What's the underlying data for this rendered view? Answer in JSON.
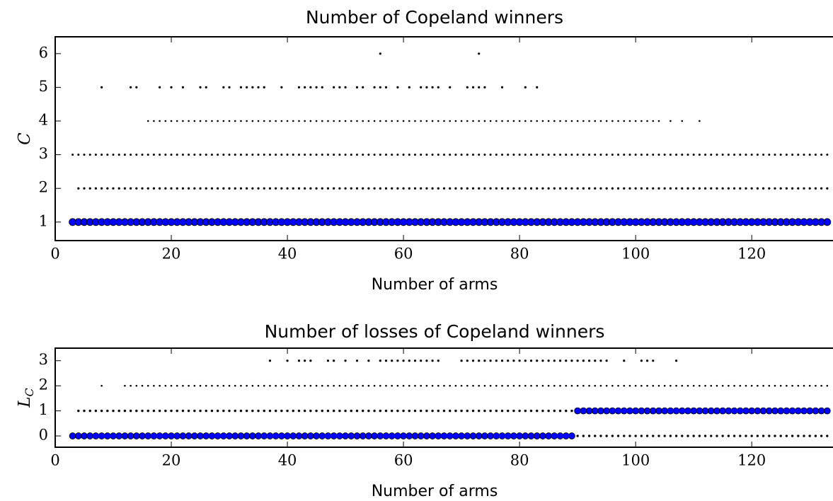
{
  "chart_data": [
    {
      "type": "scatter",
      "title": "Number of Copeland winners",
      "xlabel": "Number of arms",
      "ylabel": "C",
      "xlim": [
        0,
        134
      ],
      "ylim": [
        0.45,
        6.5
      ],
      "xticks": [
        0,
        20,
        40,
        60,
        80,
        100,
        120
      ],
      "yticks": [
        1,
        2,
        3,
        4,
        5,
        6
      ],
      "series": [
        {
          "color": "#000000",
          "size": 1.6,
          "y": 6,
          "x": [
            56,
            73
          ]
        },
        {
          "color": "#000000",
          "size": 1.6,
          "y": 5,
          "x": [
            8,
            13,
            14,
            18,
            20,
            22,
            25,
            26,
            29,
            30,
            32,
            33,
            34,
            35,
            36,
            39,
            42,
            43,
            44,
            45,
            46,
            48,
            49,
            50,
            52,
            53,
            55,
            56,
            57,
            59,
            61,
            63,
            64,
            65,
            66,
            68,
            71,
            72,
            73,
            74,
            77,
            81,
            83
          ]
        },
        {
          "color": "#000000",
          "size": 1.3,
          "y": 4,
          "x": [
            16,
            17,
            18,
            19,
            20,
            21,
            22,
            23,
            24,
            25,
            26,
            27,
            28,
            29,
            30,
            31,
            32,
            33,
            34,
            35,
            36,
            37,
            38,
            39,
            40,
            41,
            42,
            43,
            44,
            45,
            46,
            47,
            48,
            49,
            50,
            51,
            52,
            53,
            54,
            55,
            56,
            57,
            58,
            59,
            60,
            61,
            62,
            63,
            64,
            65,
            66,
            67,
            68,
            69,
            70,
            71,
            72,
            73,
            74,
            75,
            76,
            77,
            78,
            79,
            80,
            81,
            82,
            83,
            84,
            85,
            86,
            87,
            88,
            89,
            90,
            91,
            92,
            93,
            94,
            95,
            96,
            97,
            98,
            99,
            100,
            101,
            102,
            103,
            104,
            106,
            108,
            111
          ]
        },
        {
          "color": "#000000",
          "size": 1.5,
          "y": 3,
          "x": [
            3,
            4,
            5,
            6,
            7,
            8,
            9,
            10,
            11,
            12,
            13,
            14,
            15,
            16,
            17,
            18,
            19,
            20,
            21,
            22,
            23,
            24,
            25,
            26,
            27,
            28,
            29,
            30,
            31,
            32,
            33,
            34,
            35,
            36,
            37,
            38,
            39,
            40,
            41,
            42,
            43,
            44,
            45,
            46,
            47,
            48,
            49,
            50,
            51,
            52,
            53,
            54,
            55,
            56,
            57,
            58,
            59,
            60,
            61,
            62,
            63,
            64,
            65,
            66,
            67,
            68,
            69,
            70,
            71,
            72,
            73,
            74,
            75,
            76,
            77,
            78,
            79,
            80,
            81,
            82,
            83,
            84,
            85,
            86,
            87,
            88,
            89,
            90,
            91,
            92,
            93,
            94,
            95,
            96,
            97,
            98,
            99,
            100,
            101,
            102,
            103,
            104,
            105,
            106,
            107,
            108,
            109,
            110,
            111,
            112,
            113,
            114,
            115,
            116,
            117,
            118,
            119,
            120,
            121,
            122,
            123,
            124,
            125,
            126,
            127,
            128,
            129,
            130,
            131,
            132,
            133
          ]
        },
        {
          "color": "#000000",
          "size": 1.6,
          "y": 2,
          "x": [
            4,
            5,
            6,
            7,
            8,
            9,
            10,
            11,
            12,
            13,
            14,
            15,
            16,
            17,
            18,
            19,
            20,
            21,
            22,
            23,
            24,
            25,
            26,
            27,
            28,
            29,
            30,
            31,
            32,
            33,
            34,
            35,
            36,
            37,
            38,
            39,
            40,
            41,
            42,
            43,
            44,
            45,
            46,
            47,
            48,
            49,
            50,
            51,
            52,
            53,
            54,
            55,
            56,
            57,
            58,
            59,
            60,
            61,
            62,
            63,
            64,
            65,
            66,
            67,
            68,
            69,
            70,
            71,
            72,
            73,
            74,
            75,
            76,
            77,
            78,
            79,
            80,
            81,
            82,
            83,
            84,
            85,
            86,
            87,
            88,
            89,
            90,
            91,
            92,
            93,
            94,
            95,
            96,
            97,
            98,
            99,
            100,
            101,
            102,
            103,
            104,
            105,
            106,
            107,
            108,
            109,
            110,
            111,
            112,
            113,
            114,
            115,
            116,
            117,
            118,
            119,
            120,
            121,
            122,
            123,
            124,
            125,
            126,
            127,
            128,
            129,
            130,
            131,
            132,
            133
          ]
        },
        {
          "color": "#0000ff",
          "size": 5,
          "y": 1,
          "x": [
            3,
            4,
            5,
            6,
            7,
            8,
            9,
            10,
            11,
            12,
            13,
            14,
            15,
            16,
            17,
            18,
            19,
            20,
            21,
            22,
            23,
            24,
            25,
            26,
            27,
            28,
            29,
            30,
            31,
            32,
            33,
            34,
            35,
            36,
            37,
            38,
            39,
            40,
            41,
            42,
            43,
            44,
            45,
            46,
            47,
            48,
            49,
            50,
            51,
            52,
            53,
            54,
            55,
            56,
            57,
            58,
            59,
            60,
            61,
            62,
            63,
            64,
            65,
            66,
            67,
            68,
            69,
            70,
            71,
            72,
            73,
            74,
            75,
            76,
            77,
            78,
            79,
            80,
            81,
            82,
            83,
            84,
            85,
            86,
            87,
            88,
            89,
            90,
            91,
            92,
            93,
            94,
            95,
            96,
            97,
            98,
            99,
            100,
            101,
            102,
            103,
            104,
            105,
            106,
            107,
            108,
            109,
            110,
            111,
            112,
            113,
            114,
            115,
            116,
            117,
            118,
            119,
            120,
            121,
            122,
            123,
            124,
            125,
            126,
            127,
            128,
            129,
            130,
            131,
            132,
            133
          ]
        }
      ]
    },
    {
      "type": "scatter",
      "title": "Number of losses of Copeland winners",
      "xlabel": "Number of arms",
      "ylabel": "L",
      "ylabel_subscript": "C",
      "xlim": [
        0,
        134
      ],
      "ylim": [
        -0.45,
        3.5
      ],
      "xticks": [
        0,
        20,
        40,
        60,
        80,
        100,
        120
      ],
      "yticks": [
        0,
        1,
        2,
        3
      ],
      "series": [
        {
          "color": "#000000",
          "size": 1.6,
          "y": 3,
          "x": [
            37,
            40,
            42,
            43,
            44,
            47,
            48,
            50,
            52,
            54,
            56,
            57,
            58,
            59,
            60,
            61,
            62,
            63,
            64,
            65,
            66,
            70,
            71,
            72,
            73,
            74,
            75,
            76,
            77,
            78,
            79,
            80,
            81,
            82,
            83,
            84,
            85,
            86,
            87,
            88,
            89,
            90,
            91,
            92,
            93,
            94,
            95,
            98,
            101,
            102,
            103,
            107
          ]
        },
        {
          "color": "#000000",
          "size": 1.3,
          "y": 2,
          "x": [
            8,
            12,
            13,
            14,
            15,
            16,
            17,
            18,
            19,
            20,
            21,
            22,
            23,
            24,
            25,
            26,
            27,
            28,
            29,
            30,
            31,
            32,
            33,
            34,
            35,
            36,
            37,
            38,
            39,
            40,
            41,
            42,
            43,
            44,
            45,
            46,
            47,
            48,
            49,
            50,
            51,
            52,
            53,
            54,
            55,
            56,
            57,
            58,
            59,
            60,
            61,
            62,
            63,
            64,
            65,
            66,
            67,
            68,
            69,
            70,
            71,
            72,
            73,
            74,
            75,
            76,
            77,
            78,
            79,
            80,
            81,
            82,
            83,
            84,
            85,
            86,
            87,
            88,
            89,
            90,
            91,
            92,
            93,
            94,
            95,
            96,
            97,
            98,
            99,
            100,
            101,
            102,
            103,
            104,
            105,
            106,
            107,
            108,
            109,
            110,
            111,
            112,
            113,
            114,
            115,
            116,
            117,
            118,
            119,
            120,
            121,
            122,
            123,
            124,
            125,
            126,
            127,
            128,
            129,
            130,
            131,
            132,
            133
          ]
        },
        {
          "color": "#000000",
          "size": 1.7,
          "y": 1,
          "x": [
            4,
            5,
            6,
            7,
            8,
            9,
            10,
            11,
            12,
            13,
            14,
            15,
            16,
            17,
            18,
            19,
            20,
            21,
            22,
            23,
            24,
            25,
            26,
            27,
            28,
            29,
            30,
            31,
            32,
            33,
            34,
            35,
            36,
            37,
            38,
            39,
            40,
            41,
            42,
            43,
            44,
            45,
            46,
            47,
            48,
            49,
            50,
            51,
            52,
            53,
            54,
            55,
            56,
            57,
            58,
            59,
            60,
            61,
            62,
            63,
            64,
            65,
            66,
            67,
            68,
            69,
            70,
            71,
            72,
            73,
            74,
            75,
            76,
            77,
            78,
            79,
            80,
            81,
            82,
            83,
            84,
            85,
            86,
            87,
            88,
            89
          ]
        },
        {
          "color": "#0000ff",
          "size": 4.5,
          "y": 1,
          "x": [
            90,
            91,
            92,
            93,
            94,
            95,
            96,
            97,
            98,
            99,
            100,
            101,
            102,
            103,
            104,
            105,
            106,
            107,
            108,
            109,
            110,
            111,
            112,
            113,
            114,
            115,
            116,
            117,
            118,
            119,
            120,
            121,
            122,
            123,
            124,
            125,
            126,
            127,
            128,
            129,
            130,
            131,
            132,
            133
          ]
        },
        {
          "color": "#0000ff",
          "size": 4.5,
          "y": 0,
          "x": [
            3,
            4,
            5,
            6,
            7,
            8,
            9,
            10,
            11,
            12,
            13,
            14,
            15,
            16,
            17,
            18,
            19,
            20,
            21,
            22,
            23,
            24,
            25,
            26,
            27,
            28,
            29,
            30,
            31,
            32,
            33,
            34,
            35,
            36,
            37,
            38,
            39,
            40,
            41,
            42,
            43,
            44,
            45,
            46,
            47,
            48,
            49,
            50,
            51,
            52,
            53,
            54,
            55,
            56,
            57,
            58,
            59,
            60,
            61,
            62,
            63,
            64,
            65,
            66,
            67,
            68,
            69,
            70,
            71,
            72,
            73,
            74,
            75,
            76,
            77,
            78,
            79,
            80,
            81,
            82,
            83,
            84,
            85,
            86,
            87,
            88,
            89
          ]
        },
        {
          "color": "#000000",
          "size": 1.7,
          "y": 0,
          "x": [
            90,
            91,
            92,
            93,
            94,
            95,
            96,
            97,
            98,
            99,
            100,
            101,
            102,
            103,
            104,
            105,
            106,
            107,
            108,
            109,
            110,
            111,
            112,
            113,
            114,
            115,
            116,
            117,
            118,
            119,
            120,
            121,
            122,
            123,
            124,
            125,
            126,
            127,
            128,
            129,
            130,
            131,
            132,
            133
          ]
        }
      ]
    }
  ]
}
